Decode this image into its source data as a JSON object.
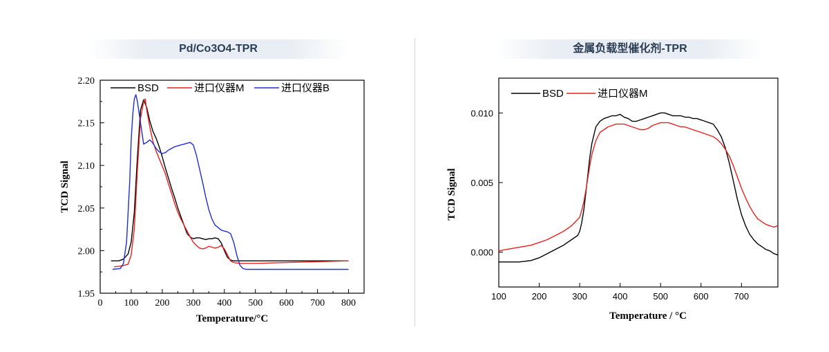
{
  "panels": {
    "left_title": "Pd/Co3O4-TPR",
    "right_title": "金属负载型催化剂-TPR"
  },
  "chart_data": [
    {
      "type": "line",
      "title": "Pd/Co3O4-TPR",
      "xlabel": "Temperature/°C",
      "ylabel": "TCD Signal",
      "xlim": [
        0,
        850
      ],
      "ylim": [
        1.95,
        2.2
      ],
      "xticks": [
        0,
        100,
        200,
        300,
        400,
        500,
        600,
        700,
        800
      ],
      "yticks": [
        1.95,
        2.0,
        2.05,
        2.1,
        2.15,
        2.2
      ],
      "xtick_labels": [
        "0",
        "100",
        "200",
        "300",
        "400",
        "500",
        "600",
        "700",
        "800"
      ],
      "ytick_labels": [
        "1.95",
        "2.00",
        "2.05",
        "2.10",
        "2.15",
        "2.20"
      ],
      "grid": false,
      "legend_position": "top",
      "series": [
        {
          "name": "BSD",
          "color": "#000000",
          "x": [
            35,
            60,
            75,
            90,
            100,
            110,
            120,
            130,
            140,
            150,
            160,
            170,
            180,
            190,
            200,
            210,
            220,
            230,
            240,
            250,
            260,
            270,
            280,
            290,
            300,
            310,
            320,
            330,
            340,
            350,
            360,
            370,
            380,
            390,
            400,
            410,
            420,
            430,
            450,
            500,
            600,
            700,
            800
          ],
          "y": [
            1.988,
            1.988,
            1.99,
            1.996,
            2.01,
            2.045,
            2.11,
            2.165,
            2.177,
            2.168,
            2.152,
            2.14,
            2.132,
            2.122,
            2.11,
            2.097,
            2.085,
            2.073,
            2.062,
            2.05,
            2.04,
            2.03,
            2.02,
            2.016,
            2.014,
            2.015,
            2.015,
            2.014,
            2.013,
            2.014,
            2.014,
            2.015,
            2.014,
            2.009,
            2.0,
            1.992,
            1.989,
            1.988,
            1.988,
            1.988,
            1.988,
            1.988,
            1.988
          ]
        },
        {
          "name": "进口仪器M",
          "color": "#e8201c",
          "x": [
            45,
            70,
            90,
            100,
            110,
            120,
            130,
            140,
            145,
            150,
            160,
            170,
            180,
            190,
            200,
            210,
            220,
            230,
            240,
            250,
            260,
            270,
            280,
            290,
            300,
            310,
            320,
            330,
            340,
            350,
            360,
            370,
            380,
            390,
            400,
            410,
            420,
            430,
            450,
            500,
            600,
            700,
            800
          ],
          "y": [
            1.981,
            1.982,
            1.984,
            1.995,
            2.025,
            2.095,
            2.155,
            2.175,
            2.178,
            2.165,
            2.145,
            2.128,
            2.117,
            2.108,
            2.099,
            2.09,
            2.078,
            2.067,
            2.055,
            2.045,
            2.037,
            2.03,
            2.023,
            2.016,
            2.01,
            2.006,
            2.003,
            2.002,
            2.003,
            2.005,
            2.004,
            2.003,
            2.004,
            2.006,
            2.002,
            1.995,
            1.988,
            1.986,
            1.985,
            1.985,
            1.986,
            1.987,
            1.988
          ]
        },
        {
          "name": "进口仪器B",
          "color": "#1f2bd6",
          "x": [
            40,
            65,
            75,
            85,
            95,
            100,
            105,
            110,
            115,
            120,
            130,
            140,
            150,
            160,
            170,
            180,
            190,
            200,
            210,
            220,
            230,
            240,
            250,
            260,
            270,
            280,
            290,
            300,
            310,
            320,
            330,
            340,
            350,
            360,
            370,
            380,
            390,
            400,
            410,
            420,
            430,
            440,
            450,
            460,
            470,
            500,
            600,
            700,
            800
          ],
          "y": [
            1.978,
            1.979,
            1.985,
            2.01,
            2.08,
            2.13,
            2.16,
            2.178,
            2.183,
            2.175,
            2.15,
            2.125,
            2.127,
            2.13,
            2.126,
            2.12,
            2.116,
            2.114,
            2.115,
            2.118,
            2.12,
            2.122,
            2.123,
            2.124,
            2.125,
            2.126,
            2.127,
            2.124,
            2.112,
            2.096,
            2.08,
            2.063,
            2.048,
            2.037,
            2.03,
            2.027,
            2.024,
            2.023,
            2.022,
            2.02,
            2.01,
            1.995,
            1.983,
            1.979,
            1.978,
            1.978,
            1.978,
            1.978,
            1.978
          ]
        }
      ]
    },
    {
      "type": "line",
      "title": "金属负载型催化剂-TPR",
      "xlabel": "Temperature / °C",
      "ylabel": "TCD Signal",
      "xlim": [
        100,
        790
      ],
      "ylim": [
        -0.0025,
        0.0125
      ],
      "xticks": [
        100,
        200,
        300,
        400,
        500,
        600,
        700
      ],
      "yticks": [
        0.0,
        0.005,
        0.01
      ],
      "xtick_labels": [
        "100",
        "200",
        "300",
        "400",
        "500",
        "600",
        "700"
      ],
      "ytick_labels": [
        "0.000",
        "0.005",
        "0.010"
      ],
      "grid": false,
      "legend_position": "top-left",
      "series": [
        {
          "name": "BSD",
          "color": "#000000",
          "x": [
            100,
            150,
            180,
            200,
            220,
            240,
            260,
            280,
            295,
            300,
            305,
            310,
            315,
            320,
            325,
            330,
            340,
            350,
            360,
            370,
            380,
            390,
            400,
            410,
            420,
            430,
            440,
            450,
            460,
            470,
            480,
            490,
            500,
            510,
            520,
            530,
            540,
            550,
            560,
            570,
            580,
            590,
            600,
            610,
            620,
            630,
            640,
            650,
            660,
            670,
            680,
            690,
            700,
            710,
            720,
            730,
            740,
            750,
            760,
            770,
            780,
            790
          ],
          "y": [
            -0.0007,
            -0.0007,
            -0.0006,
            -0.0004,
            -0.0001,
            0.0002,
            0.0005,
            0.0009,
            0.0012,
            0.0015,
            0.0021,
            0.003,
            0.0042,
            0.0055,
            0.0068,
            0.0078,
            0.009,
            0.0094,
            0.0096,
            0.0097,
            0.0098,
            0.0098,
            0.0099,
            0.0097,
            0.0096,
            0.0094,
            0.0094,
            0.0095,
            0.0096,
            0.0097,
            0.0098,
            0.0099,
            0.01,
            0.01,
            0.0099,
            0.0098,
            0.0098,
            0.0098,
            0.0097,
            0.0097,
            0.0096,
            0.0096,
            0.0095,
            0.0094,
            0.0093,
            0.0092,
            0.0088,
            0.0083,
            0.0075,
            0.0064,
            0.0051,
            0.0038,
            0.0027,
            0.0019,
            0.0013,
            0.0009,
            0.0006,
            0.0004,
            0.0002,
            0.0001,
            -0.0001,
            -0.0002
          ]
        },
        {
          "name": "进口仪器M",
          "color": "#e8201c",
          "x": [
            100,
            120,
            140,
            160,
            180,
            200,
            220,
            240,
            260,
            280,
            290,
            300,
            305,
            310,
            315,
            320,
            325,
            330,
            340,
            350,
            360,
            370,
            380,
            390,
            400,
            410,
            420,
            430,
            440,
            450,
            460,
            470,
            480,
            490,
            500,
            510,
            520,
            530,
            540,
            550,
            560,
            570,
            580,
            590,
            600,
            610,
            620,
            630,
            640,
            650,
            660,
            670,
            680,
            690,
            700,
            710,
            720,
            730,
            740,
            750,
            760,
            770,
            780,
            790
          ],
          "y": [
            0.0001,
            0.0002,
            0.0003,
            0.0004,
            0.0005,
            0.0007,
            0.0009,
            0.0012,
            0.0015,
            0.0019,
            0.0022,
            0.0025,
            0.003,
            0.0036,
            0.0044,
            0.0053,
            0.0062,
            0.007,
            0.008,
            0.0086,
            0.0088,
            0.009,
            0.0091,
            0.0092,
            0.0092,
            0.0092,
            0.0091,
            0.009,
            0.0089,
            0.0088,
            0.0088,
            0.0089,
            0.0091,
            0.0092,
            0.0093,
            0.0093,
            0.0093,
            0.0092,
            0.0091,
            0.009,
            0.009,
            0.0089,
            0.0088,
            0.0087,
            0.0086,
            0.0085,
            0.0084,
            0.0083,
            0.0081,
            0.0078,
            0.0074,
            0.0069,
            0.0062,
            0.0054,
            0.0046,
            0.0039,
            0.0033,
            0.0028,
            0.0024,
            0.0022,
            0.002,
            0.0019,
            0.0018,
            0.0019
          ]
        }
      ]
    }
  ]
}
